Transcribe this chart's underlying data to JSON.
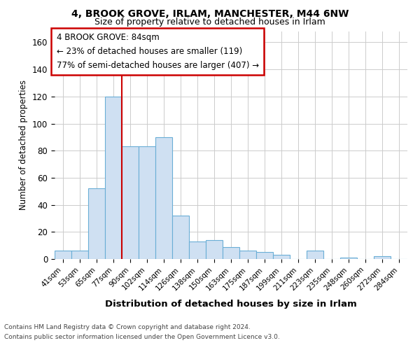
{
  "title_line1": "4, BROOK GROVE, IRLAM, MANCHESTER, M44 6NW",
  "title_line2": "Size of property relative to detached houses in Irlam",
  "xlabel": "Distribution of detached houses by size in Irlam",
  "ylabel": "Number of detached properties",
  "categories": [
    "41sqm",
    "53sqm",
    "65sqm",
    "77sqm",
    "90sqm",
    "102sqm",
    "114sqm",
    "126sqm",
    "138sqm",
    "150sqm",
    "163sqm",
    "175sqm",
    "187sqm",
    "199sqm",
    "211sqm",
    "223sqm",
    "235sqm",
    "248sqm",
    "260sqm",
    "272sqm",
    "284sqm"
  ],
  "values": [
    6,
    6,
    52,
    120,
    83,
    83,
    90,
    32,
    13,
    14,
    9,
    6,
    5,
    3,
    0,
    6,
    0,
    1,
    0,
    2,
    0
  ],
  "bar_color": "#cfe0f2",
  "bar_edge_color": "#6aaed6",
  "red_line_x": 3.5,
  "ylim": [
    0,
    168
  ],
  "yticks": [
    0,
    20,
    40,
    60,
    80,
    100,
    120,
    140,
    160
  ],
  "annotation_title": "4 BROOK GROVE: 84sqm",
  "annotation_line1": "← 23% of detached houses are smaller (119)",
  "annotation_line2": "77% of semi-detached houses are larger (407) →",
  "annotation_box_color": "#ffffff",
  "annotation_box_edge": "#cc0000",
  "footnote1": "Contains HM Land Registry data © Crown copyright and database right 2024.",
  "footnote2": "Contains public sector information licensed under the Open Government Licence v3.0.",
  "grid_color": "#cccccc",
  "background_color": "#ffffff"
}
